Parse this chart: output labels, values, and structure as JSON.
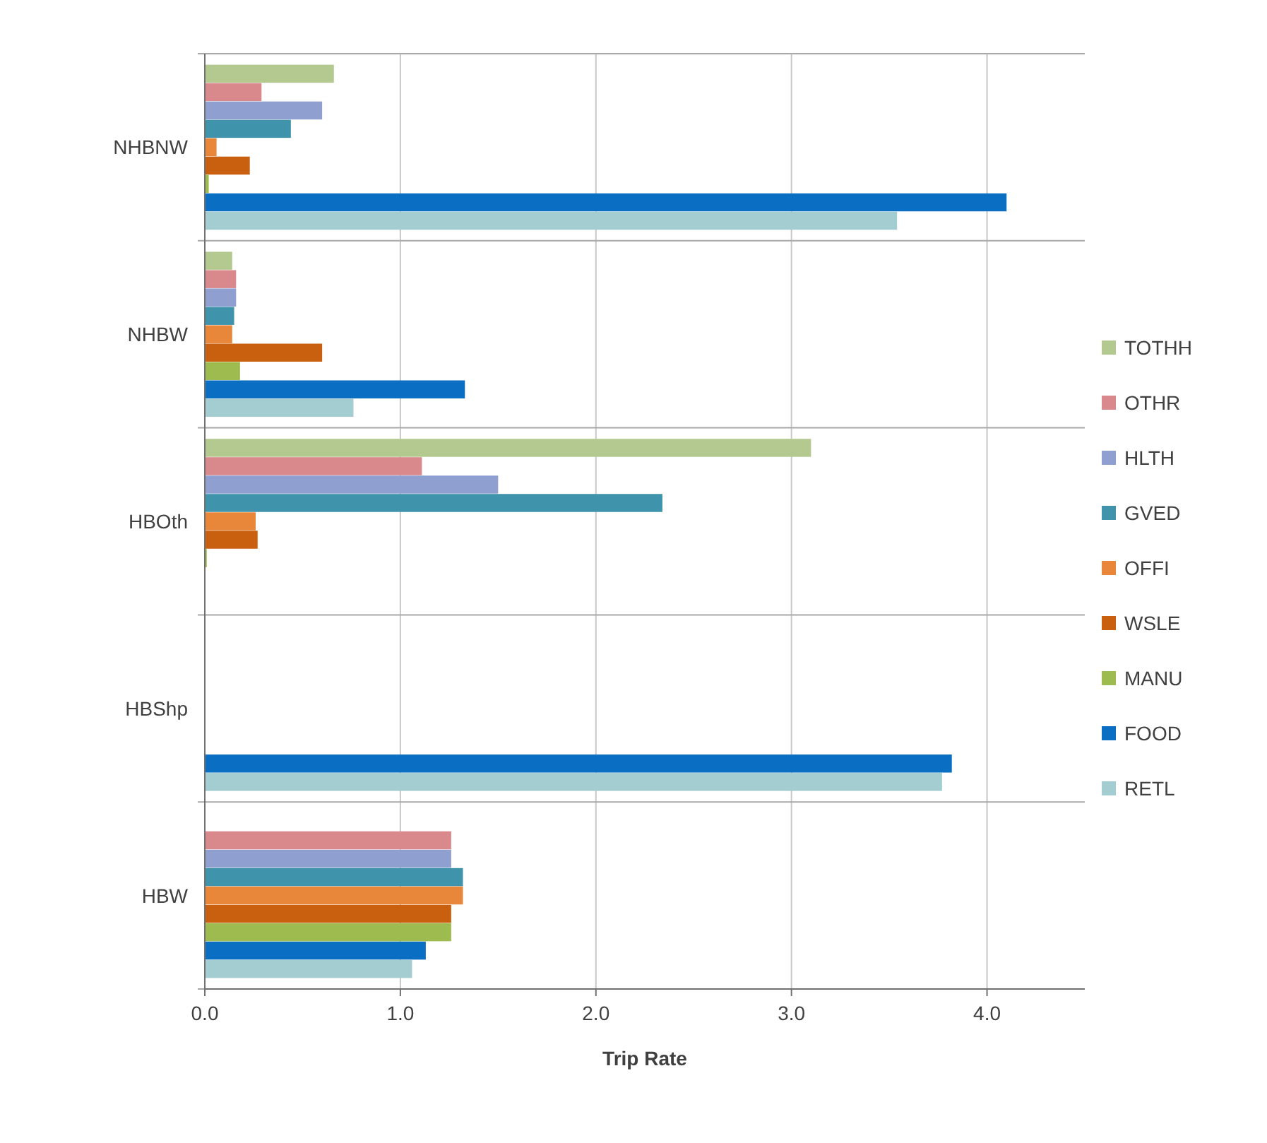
{
  "chart_data": {
    "type": "bar",
    "orientation": "horizontal",
    "xlabel": "Trip Rate",
    "categories": [
      "NHBNW",
      "NHBW",
      "HBOth",
      "HBShp",
      "HBW"
    ],
    "series": [
      {
        "name": "TOTHH",
        "color": "#b3c98f",
        "values": [
          0.66,
          0.14,
          3.1,
          0,
          0
        ]
      },
      {
        "name": "OTHR",
        "color": "#d9888c",
        "values": [
          0.29,
          0.16,
          1.11,
          0,
          1.26
        ]
      },
      {
        "name": "HLTH",
        "color": "#8fa0d0",
        "values": [
          0.6,
          0.16,
          1.5,
          0,
          1.26
        ]
      },
      {
        "name": "GVED",
        "color": "#3f93ab",
        "values": [
          0.44,
          0.15,
          2.34,
          0,
          1.32
        ]
      },
      {
        "name": "OFFI",
        "color": "#e8873a",
        "values": [
          0.06,
          0.14,
          0.26,
          0,
          1.32
        ]
      },
      {
        "name": "WSLE",
        "color": "#c8600f",
        "values": [
          0.23,
          0.6,
          0.27,
          0,
          1.26
        ]
      },
      {
        "name": "MANU",
        "color": "#9dbb4f",
        "values": [
          0.02,
          0.18,
          0.01,
          0,
          1.26
        ]
      },
      {
        "name": "FOOD",
        "color": "#0a6fc2",
        "values": [
          4.1,
          1.33,
          0,
          3.82,
          1.13
        ]
      },
      {
        "name": "RETL",
        "color": "#a3cdd0",
        "values": [
          3.54,
          0.76,
          0,
          3.77,
          1.06
        ]
      }
    ],
    "xlim": [
      0,
      4.5
    ],
    "xticks": [
      {
        "value": 0,
        "label": "0.0"
      },
      {
        "value": 1,
        "label": "1.0"
      },
      {
        "value": 2,
        "label": "2.0"
      },
      {
        "value": 3,
        "label": "3.0"
      },
      {
        "value": 4,
        "label": "4.0"
      }
    ],
    "grid": true,
    "legend": "right"
  }
}
